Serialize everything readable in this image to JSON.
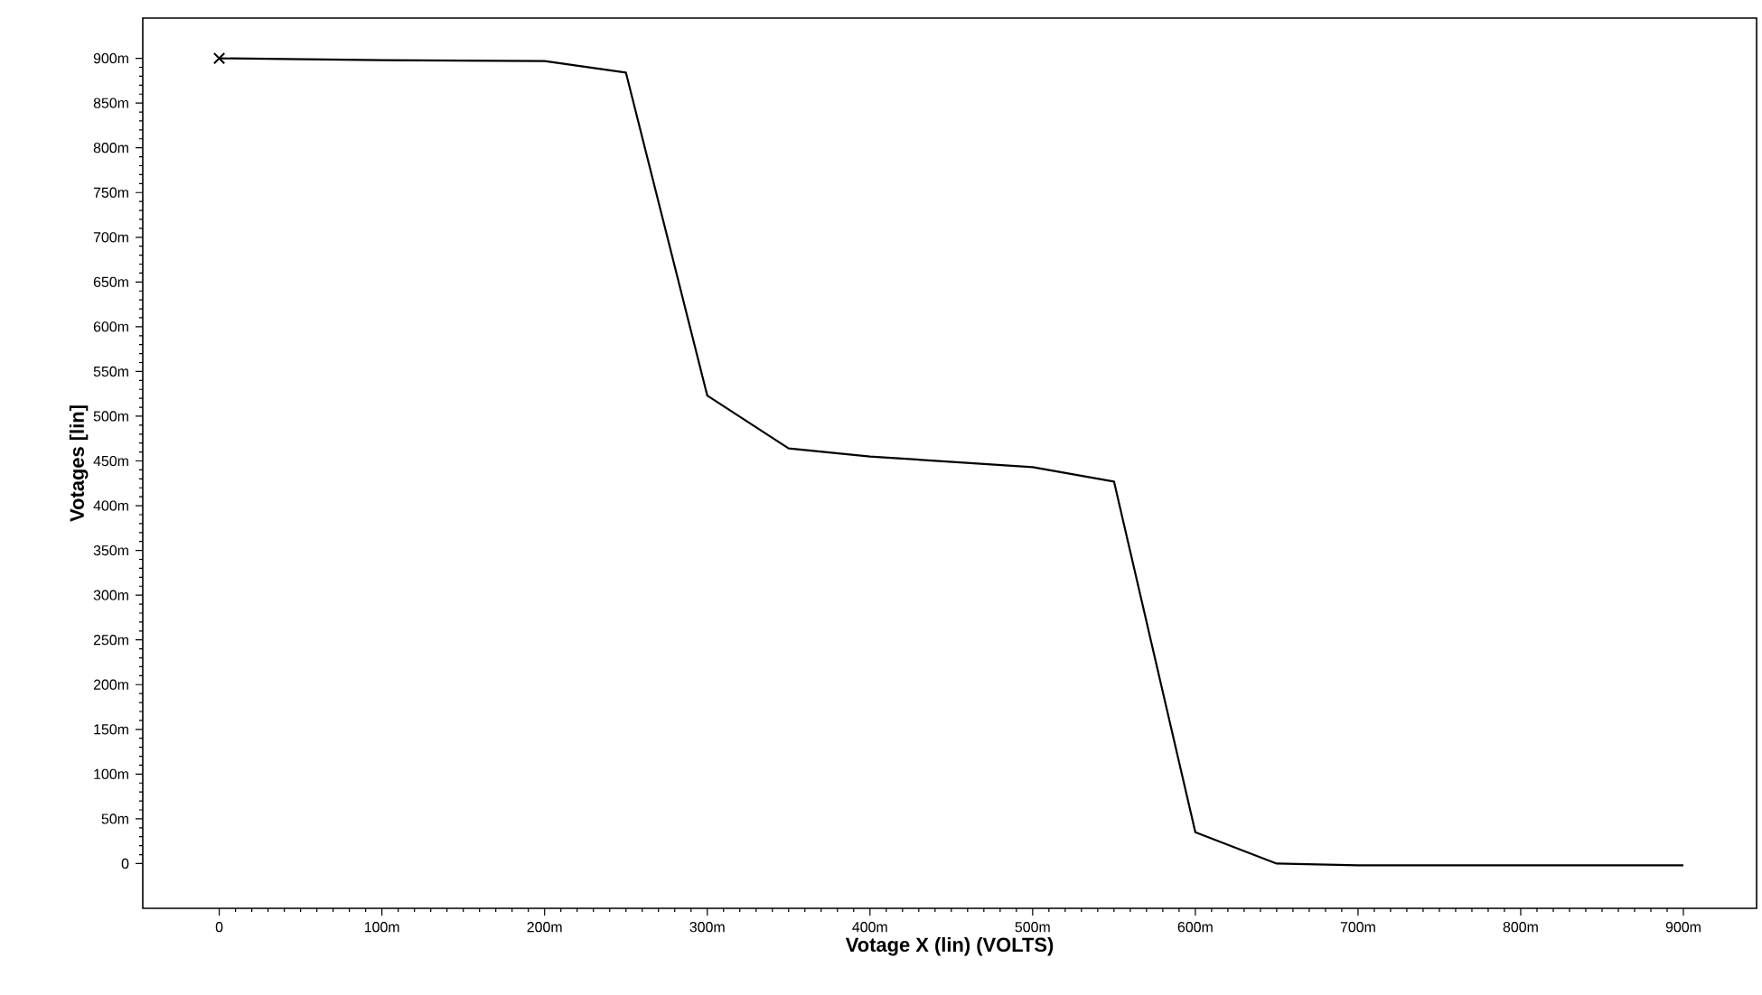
{
  "chart_data": {
    "type": "line",
    "xlabel": "Votage X (lin) (VOLTS)",
    "ylabel": "Votages [lin]",
    "x": [
      0,
      100,
      200,
      250,
      300,
      350,
      400,
      500,
      550,
      600,
      650,
      700,
      900
    ],
    "series": [
      {
        "color": "#000000",
        "values": [
          900,
          898,
          897,
          884,
          523,
          464,
          455,
          443,
          427,
          35,
          0,
          -2,
          -2
        ]
      },
      {
        "type": "scatter",
        "marker": "cross",
        "color": "#000000",
        "x": [
          0
        ],
        "values": [
          900
        ]
      }
    ],
    "xlim": [
      -47,
      945
    ],
    "ylim": [
      -50,
      945
    ],
    "xticks": [
      0,
      {
        "value": 100,
        "label": "100m"
      },
      {
        "value": 200,
        "label": "200m"
      },
      {
        "value": 300,
        "label": "300m"
      },
      {
        "value": 400,
        "label": "400m"
      },
      {
        "value": 500,
        "label": "500m"
      },
      {
        "value": 600,
        "label": "600m"
      },
      {
        "value": 700,
        "label": "700m"
      },
      {
        "value": 800,
        "label": "800m"
      },
      {
        "value": 900,
        "label": "900m"
      }
    ],
    "yticks": [
      0,
      {
        "value": 50,
        "label": "50m"
      },
      {
        "value": 100,
        "label": "100m"
      },
      {
        "value": 150,
        "label": "150m"
      },
      {
        "value": 200,
        "label": "200m"
      },
      {
        "value": 250,
        "label": "250m"
      },
      {
        "value": 300,
        "label": "300m"
      },
      {
        "value": 350,
        "label": "350m"
      },
      {
        "value": 400,
        "label": "400m"
      },
      {
        "value": 450,
        "label": "450m"
      },
      {
        "value": 500,
        "label": "500m"
      },
      {
        "value": 550,
        "label": "550m"
      },
      {
        "value": 600,
        "label": "600m"
      },
      {
        "value": 650,
        "label": "650m"
      },
      {
        "value": 700,
        "label": "700m"
      },
      {
        "value": 750,
        "label": "750m"
      },
      {
        "value": 800,
        "label": "800m"
      },
      {
        "value": 850,
        "label": "850m"
      },
      {
        "value": 900,
        "label": "900m"
      }
    ],
    "grid": false
  }
}
